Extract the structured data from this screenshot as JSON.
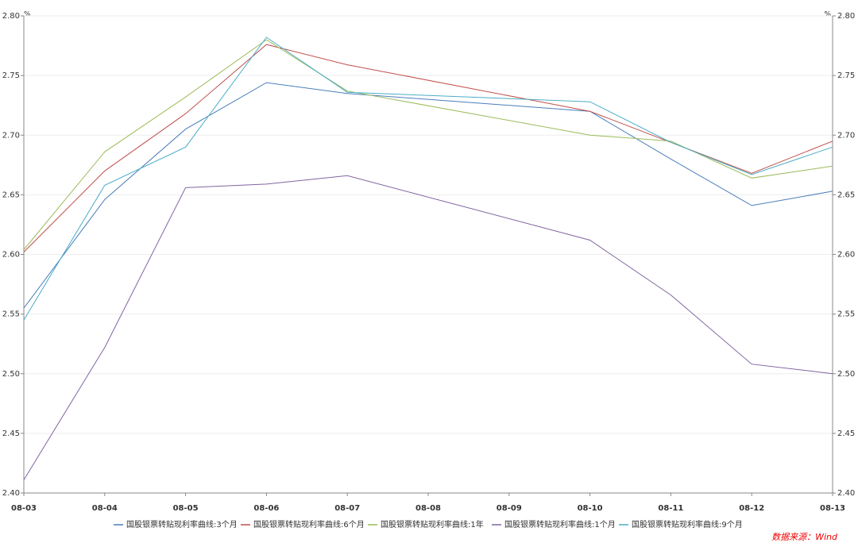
{
  "chart_data": {
    "type": "line",
    "unit": "%",
    "xticks": [
      "08-03",
      "08-04",
      "08-05",
      "08-06",
      "08-07",
      "08-08",
      "08-09",
      "08-10",
      "08-11",
      "08-12",
      "08-13"
    ],
    "x": [
      "08-03",
      "08-04",
      "08-05",
      "08-06",
      "08-07",
      "08-10",
      "08-11",
      "08-12",
      "08-13"
    ],
    "series": [
      {
        "name": "国股银票转贴现利率曲线:3个月",
        "color": "#4a7ebb",
        "values": [
          2.555,
          2.646,
          2.705,
          2.744,
          2.735,
          2.72,
          2.68,
          2.641,
          2.653
        ]
      },
      {
        "name": "国股银票转贴现利率曲线:6个月",
        "color": "#c0504d",
        "values": [
          2.602,
          2.67,
          2.718,
          2.776,
          2.759,
          2.72,
          2.694,
          2.668,
          2.695
        ]
      },
      {
        "name": "国股银票转贴现利率曲线:1年",
        "color": "#9bbb59",
        "values": [
          2.604,
          2.686,
          2.732,
          2.78,
          2.737,
          2.7,
          2.695,
          2.664,
          2.674
        ]
      },
      {
        "name": "国股银票转贴现利率曲线:1个月",
        "color": "#8064a2",
        "values": [
          2.411,
          2.522,
          2.656,
          2.659,
          2.666,
          2.612,
          2.566,
          2.508,
          2.5
        ]
      },
      {
        "name": "国股银票转贴现利率曲线:9个月",
        "color": "#4bacc6",
        "values": [
          2.545,
          2.658,
          2.69,
          2.782,
          2.736,
          2.728,
          2.694,
          2.667,
          2.69
        ]
      }
    ],
    "ylim": [
      2.4,
      2.8
    ],
    "yticks": [
      {
        "value": 2.4,
        "label": "2.40"
      },
      {
        "value": 2.45,
        "label": "2.45"
      },
      {
        "value": 2.5,
        "label": "2.50"
      },
      {
        "value": 2.55,
        "label": "2.55"
      },
      {
        "value": 2.6,
        "label": "2.60"
      },
      {
        "value": 2.65,
        "label": "2.65"
      },
      {
        "value": 2.7,
        "label": "2.70"
      },
      {
        "value": 2.75,
        "label": "2.75"
      },
      {
        "value": 2.8,
        "label": "2.80"
      }
    ],
    "y2lim": [
      2.4,
      2.8
    ],
    "y2ticks": [
      {
        "value": 2.4,
        "label": "2.40"
      },
      {
        "value": 2.45,
        "label": "2.45"
      },
      {
        "value": 2.5,
        "label": "2.50"
      },
      {
        "value": 2.55,
        "label": "2.55"
      },
      {
        "value": 2.6,
        "label": "2.60"
      },
      {
        "value": 2.65,
        "label": "2.65"
      },
      {
        "value": 2.7,
        "label": "2.70"
      },
      {
        "value": 2.75,
        "label": "2.75"
      },
      {
        "value": 2.8,
        "label": "2.80"
      }
    ],
    "grid": true,
    "legend": "bottom",
    "source": "数据来源：Wind"
  }
}
